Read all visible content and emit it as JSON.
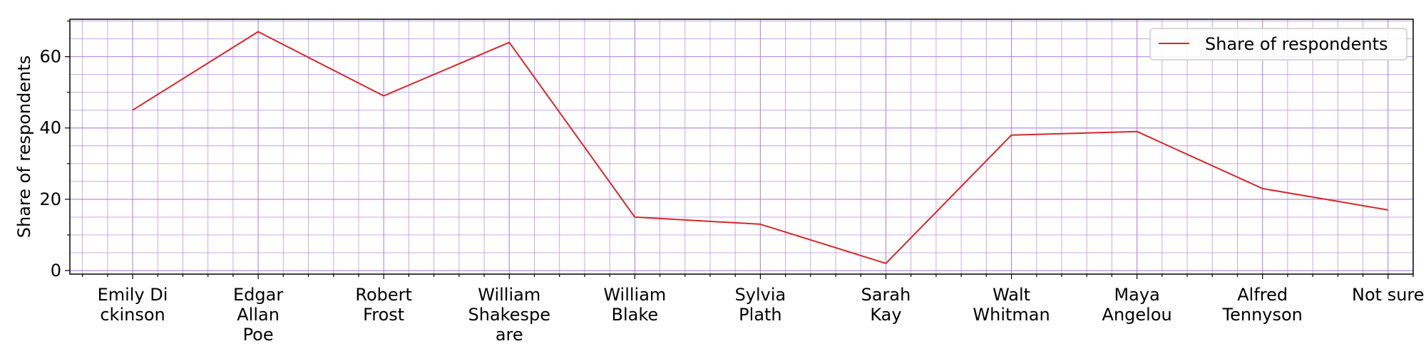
{
  "chart_data": {
    "type": "line",
    "categories": [
      [
        "Emily Di",
        "ckinson"
      ],
      [
        "Edgar",
        "Allan",
        "Poe"
      ],
      [
        "Robert",
        "Frost"
      ],
      [
        "William",
        "Shakespe",
        "are"
      ],
      [
        "William",
        "Blake"
      ],
      [
        "Sylvia",
        "Plath"
      ],
      [
        "Sarah",
        "Kay"
      ],
      [
        "Walt",
        "Whitman"
      ],
      [
        "Maya",
        "Angelou"
      ],
      [
        "Alfred",
        "Tennyson"
      ],
      [
        "Not sure"
      ]
    ],
    "series": [
      {
        "name": "Share of respondents",
        "values": [
          45,
          67,
          49,
          64,
          15,
          13,
          2,
          38,
          39,
          23,
          17
        ],
        "color": "#d62728"
      }
    ],
    "ylabel": "Share of respondents",
    "xlabel": "",
    "ylim": [
      -1,
      70.5
    ],
    "yticks": [
      0,
      20,
      40,
      60
    ],
    "yticks_minor": [
      10,
      30,
      50,
      70
    ],
    "grid": true,
    "grid_color": "#b07fe0",
    "legend_position": "top-right"
  }
}
